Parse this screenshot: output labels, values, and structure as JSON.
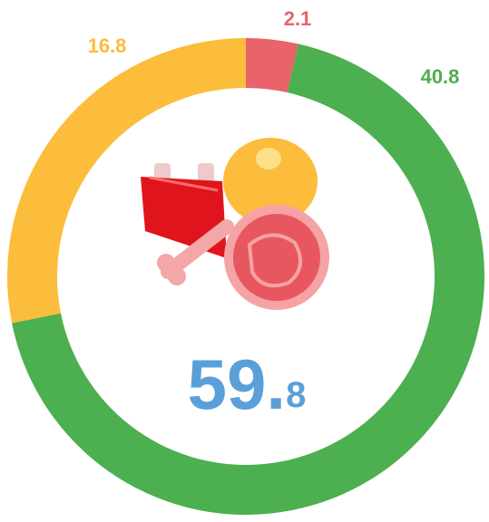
{
  "chart_data": {
    "type": "donut",
    "values": [
      2.1,
      40.8,
      16.8
    ],
    "colors": [
      "#e8636a",
      "#4caf50",
      "#fbbd3b"
    ],
    "center_label": "59.8"
  }
}
